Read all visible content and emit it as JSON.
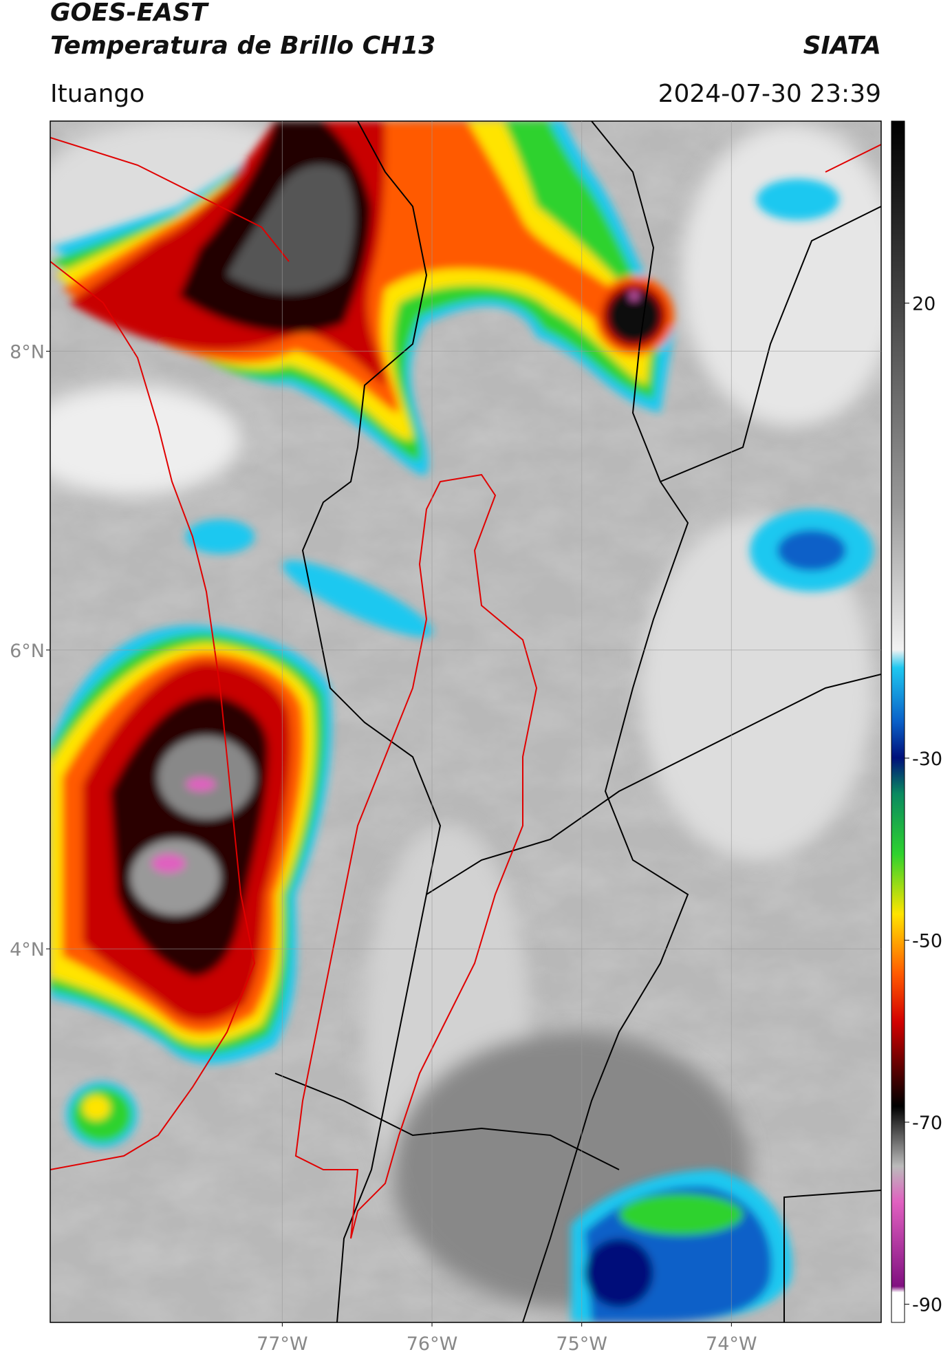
{
  "chart_data": {
    "type": "map",
    "title": "GOES-EAST",
    "subtitle": "Temperatura de Brillo CH13",
    "source": "SIATA",
    "location": "Ituango",
    "timestamp": "2024-07-30 23:39",
    "xlim": [
      -78.55,
      -73.0
    ],
    "ylim": [
      1.5,
      9.54
    ],
    "xticks": [
      {
        "value": -77,
        "label": "77°W"
      },
      {
        "value": -76,
        "label": "76°W"
      },
      {
        "value": -75,
        "label": "75°W"
      },
      {
        "value": -74,
        "label": "74°W"
      }
    ],
    "yticks": [
      {
        "value": 4,
        "label": "4°N"
      },
      {
        "value": 6,
        "label": "6°N"
      },
      {
        "value": 8,
        "label": "8°N"
      }
    ],
    "grid": true,
    "colorbar": {
      "lim": [
        -92,
        40
      ],
      "ticks": [
        20,
        -30,
        -50,
        -70,
        -90
      ]
    }
  }
}
